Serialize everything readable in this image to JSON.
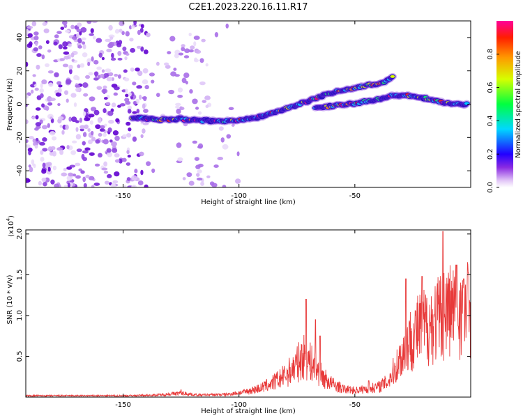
{
  "title": "C2E1.2023.220.16.11.R17",
  "colors": {
    "signal_line": "#e83a3a",
    "frame": "#000000"
  },
  "chart_data": [
    {
      "type": "heatmap",
      "xlabel": "Height of straight line (km)",
      "ylabel": "Frequency (Hz)",
      "xlim": [
        -192,
        0
      ],
      "ylim": [
        -50,
        50
      ],
      "xticks": [
        -150,
        -100,
        -50
      ],
      "yticks": [
        -40,
        -20,
        0,
        20,
        40
      ],
      "colorbar": {
        "label": "Normalized spectral amplitude",
        "ticks": [
          "0.0",
          "0.2",
          "0.4",
          "0.6",
          "0.8"
        ],
        "range": [
          0,
          1
        ]
      },
      "tracks": [
        {
          "name_hidden": true,
          "points": [
            [
              -146,
              -8
            ],
            [
              -135,
              -9.5
            ],
            [
              -125,
              -9
            ],
            [
              -112,
              -10
            ],
            [
              -100,
              -10
            ],
            [
              -92,
              -8
            ],
            [
              -85,
              -5
            ],
            [
              -78,
              -2
            ],
            [
              -70,
              2
            ],
            [
              -62,
              6
            ],
            [
              -54,
              9
            ],
            [
              -45,
              11
            ],
            [
              -38,
              13
            ],
            [
              -33,
              17
            ]
          ]
        },
        {
          "name_hidden": true,
          "points": [
            [
              -67,
              -2
            ],
            [
              -58,
              -1
            ],
            [
              -48,
              1
            ],
            [
              -40,
              3
            ],
            [
              -34,
              5
            ],
            [
              -25,
              5
            ],
            [
              -18,
              3
            ],
            [
              -12,
              1
            ],
            [
              -6,
              0
            ],
            [
              -1,
              0
            ]
          ]
        }
      ],
      "noise_region_x": [
        -192,
        -100
      ]
    },
    {
      "type": "line",
      "xlabel": "Height of straight line (km)",
      "ylabel": "SNR (10 * v/v)",
      "scale_label": "(x10",
      "scale_exp": "4",
      "scale_close": ")",
      "xlim": [
        -192,
        0
      ],
      "ylim": [
        0,
        2.05
      ],
      "xticks": [
        -150,
        -100,
        -50
      ],
      "yticks": [
        0.5,
        1.0,
        1.5,
        2.0
      ],
      "ytick_labels": [
        "0.5",
        "1.0",
        "1.5",
        "2.0"
      ],
      "envelope": [
        [
          -192,
          0.02
        ],
        [
          -150,
          0.02
        ],
        [
          -135,
          0.03
        ],
        [
          -125,
          0.06
        ],
        [
          -118,
          0.03
        ],
        [
          -105,
          0.04
        ],
        [
          -97,
          0.08
        ],
        [
          -90,
          0.14
        ],
        [
          -85,
          0.22
        ],
        [
          -80,
          0.32
        ],
        [
          -76,
          0.45
        ],
        [
          -72,
          0.6
        ],
        [
          -68,
          0.48
        ],
        [
          -64,
          0.3
        ],
        [
          -60,
          0.2
        ],
        [
          -55,
          0.12
        ],
        [
          -50,
          0.1
        ],
        [
          -45,
          0.12
        ],
        [
          -40,
          0.15
        ],
        [
          -36,
          0.22
        ],
        [
          -33,
          0.4
        ],
        [
          -30,
          0.6
        ],
        [
          -27,
          0.8
        ],
        [
          -24,
          0.95
        ],
        [
          -20,
          1.05
        ],
        [
          -16,
          1.1
        ],
        [
          -13,
          1.2
        ],
        [
          -10,
          1.3
        ],
        [
          -6,
          1.3
        ],
        [
          -3,
          1.3
        ],
        [
          0,
          1.35
        ]
      ],
      "spikes": [
        [
          -125,
          0.09
        ],
        [
          -71,
          1.2
        ],
        [
          -67,
          0.95
        ],
        [
          -65,
          0.75
        ],
        [
          -44,
          0.2
        ],
        [
          -28,
          1.45
        ],
        [
          -21,
          1.48
        ],
        [
          -12,
          2.03
        ],
        [
          -6,
          1.62
        ],
        [
          -3,
          1.45
        ],
        [
          -1,
          1.52
        ]
      ]
    }
  ]
}
